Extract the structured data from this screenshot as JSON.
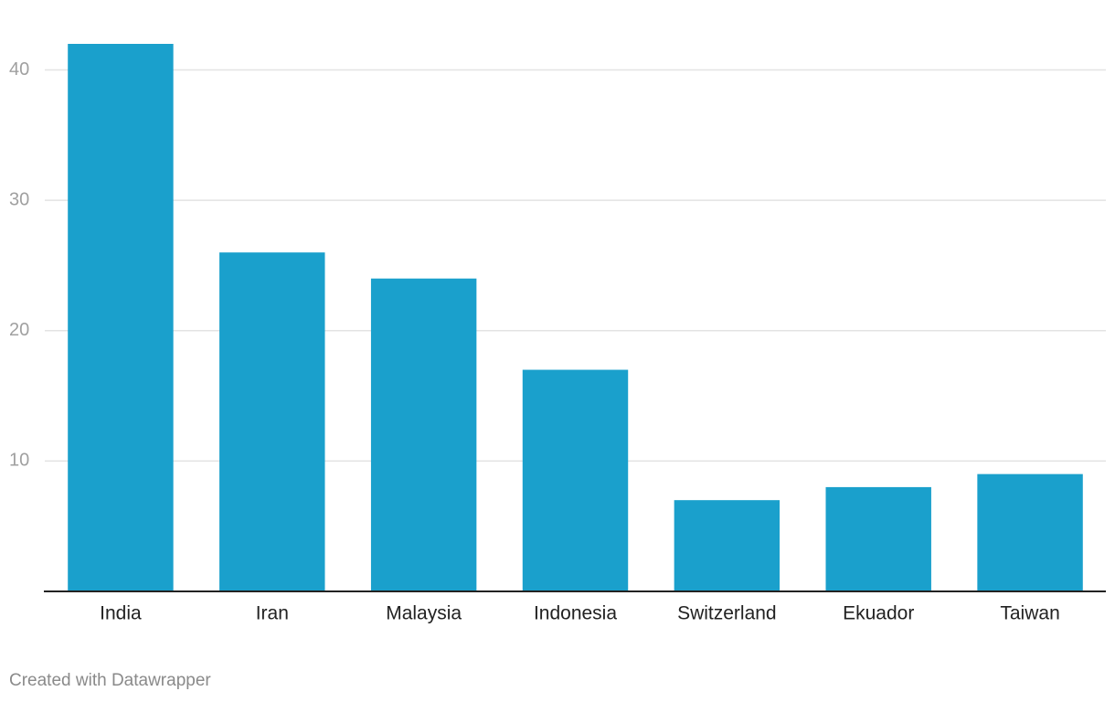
{
  "chart_data": {
    "type": "bar",
    "categories": [
      "India",
      "Iran",
      "Malaysia",
      "Indonesia",
      "Switzerland",
      "Ekuador",
      "Taiwan"
    ],
    "values": [
      42,
      26,
      24,
      17,
      7,
      8,
      9
    ],
    "color": "#1aa0cc",
    "ylim": [
      0,
      42
    ],
    "yticks": [
      10,
      20,
      30,
      40
    ],
    "grid": true,
    "footer": "Created with Datawrapper"
  }
}
